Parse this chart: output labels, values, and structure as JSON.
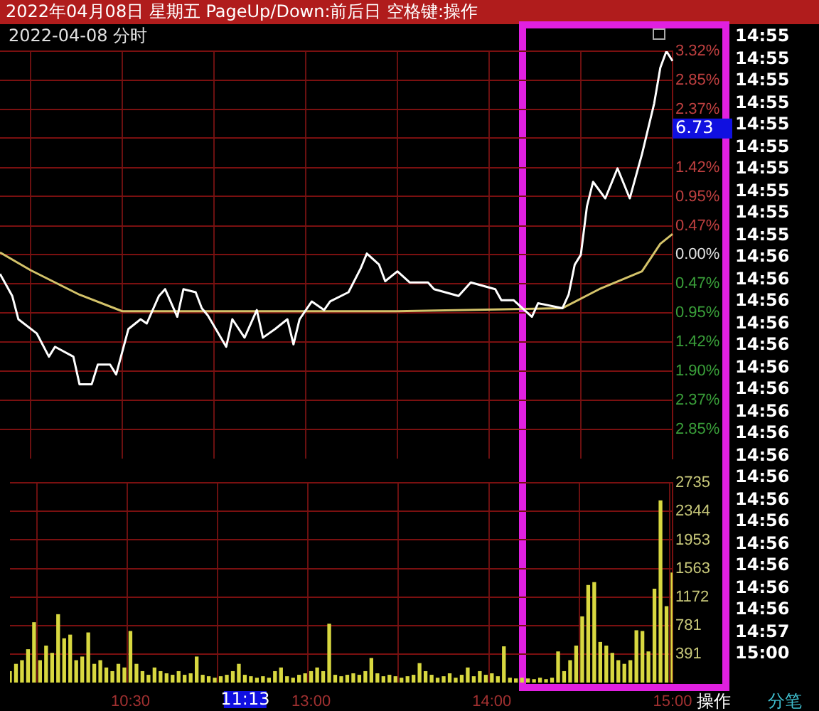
{
  "chart_data": [
    {
      "type": "line",
      "title": "2022-04-08 分时",
      "ylim": [
        -3.32,
        3.32
      ],
      "categories": [
        null,
        null,
        null,
        null,
        null,
        null,
        null,
        null,
        null,
        null,
        null,
        null,
        null,
        null,
        null,
        null,
        null,
        null,
        null,
        null,
        null,
        null,
        null,
        null,
        null,
        null,
        null,
        null,
        null,
        null,
        null,
        null,
        null,
        null,
        null,
        null,
        null,
        null,
        null,
        null,
        null,
        null,
        null,
        null,
        null,
        null,
        null,
        null,
        null,
        null,
        null,
        null,
        null,
        null,
        null,
        null,
        null,
        null,
        null,
        null,
        null,
        null,
        null,
        null,
        null,
        null,
        null,
        null,
        null,
        null,
        null,
        null,
        null,
        null,
        null,
        null,
        null,
        null,
        null,
        null,
        null,
        null,
        null,
        null,
        null,
        null,
        null,
        null,
        null,
        null,
        null,
        null,
        null,
        null,
        null,
        null,
        null,
        null,
        null,
        null,
        null,
        null,
        null,
        null,
        null,
        null,
        null,
        null,
        null,
        null,
        null
      ],
      "yticks": [
        {
          "value": 3.32,
          "label": "3.32%"
        },
        {
          "value": 2.85,
          "label": "2.85%"
        },
        {
          "value": 2.37,
          "label": "2.37%"
        },
        {
          "value": 1.9,
          "label": null
        },
        {
          "value": 1.42,
          "label": "1.42%"
        },
        {
          "value": 0.95,
          "label": "0.95%"
        },
        {
          "value": 0.47,
          "label": "0.47%"
        },
        {
          "value": 0,
          "label": "0.00%"
        },
        {
          "value": -0.47,
          "label": "0.47%"
        },
        {
          "value": -0.95,
          "label": "0.95%"
        },
        {
          "value": -1.42,
          "label": "1.42%"
        },
        {
          "value": -1.9,
          "label": "1.90%"
        },
        {
          "value": -2.37,
          "label": "2.37%"
        },
        {
          "value": -2.85,
          "label": "2.85%"
        }
      ],
      "tick_labels": "y",
      "grid": true,
      "annotations": [
        "6.73"
      ],
      "series": [
        {
          "color": "#ffffff",
          "values": [
            -0.31,
            null,
            -0.67,
            -1.05,
            null,
            null,
            -1.28,
            null,
            -1.66,
            -1.5,
            null,
            null,
            -1.66,
            -2.11,
            null,
            -2.11,
            -1.79,
            null,
            -1.79,
            -1.95,
            null,
            -1.21,
            null,
            -1.05,
            -1.12,
            null,
            -0.67,
            -0.56,
            null,
            -1.01,
            -0.56,
            null,
            -0.61,
            -0.87,
            -0.99,
            null,
            null,
            -1.5,
            -1.05,
            null,
            -1.35,
            null,
            -0.9,
            -1.35,
            null,
            -1.21,
            null,
            -1.05,
            -1.46,
            -1.05,
            null,
            -0.76,
            null,
            -0.9,
            -0.76,
            null,
            null,
            -0.61,
            null,
            -0.22,
            0.02,
            null,
            -0.16,
            -0.43,
            null,
            -0.27,
            null,
            -0.45,
            null,
            null,
            -0.45,
            -0.56,
            null,
            null,
            null,
            -0.67,
            null,
            -0.45,
            null,
            null,
            null,
            -0.56,
            -0.74,
            null,
            -0.74,
            null,
            null,
            -1.01,
            -0.79,
            null,
            null,
            null,
            -0.87,
            -0.65,
            -0.16,
            0,
            0.79,
            1.19,
            null,
            0.92,
            null,
            1.41,
            null,
            0.92,
            null,
            1.64,
            null,
            2.47,
            3.05,
            3.32,
            3.16
          ]
        },
        {
          "color": "#d4c36a",
          "values": [
            0.04,
            null,
            null,
            null,
            null,
            -0.25,
            null,
            null,
            null,
            null,
            null,
            null,
            null,
            -0.65,
            null,
            null,
            null,
            null,
            null,
            null,
            -0.92,
            null,
            null,
            null,
            null,
            null,
            null,
            null,
            null,
            null,
            null,
            null,
            null,
            null,
            null,
            null,
            null,
            null,
            null,
            null,
            null,
            null,
            null,
            null,
            null,
            null,
            null,
            null,
            null,
            null,
            null,
            null,
            null,
            null,
            null,
            null,
            null,
            null,
            null,
            null,
            null,
            null,
            null,
            null,
            null,
            -0.92,
            null,
            null,
            null,
            null,
            null,
            null,
            null,
            null,
            null,
            null,
            null,
            null,
            null,
            null,
            null,
            null,
            null,
            null,
            null,
            null,
            null,
            null,
            null,
            null,
            null,
            null,
            -0.87,
            null,
            null,
            null,
            null,
            null,
            -0.56,
            null,
            null,
            null,
            null,
            null,
            null,
            -0.27,
            null,
            null,
            0.18,
            null,
            0.34
          ]
        }
      ]
    },
    {
      "type": "bar",
      "ylim": [
        0,
        2735
      ],
      "categories": [
        null,
        null,
        null,
        null,
        null,
        null,
        null,
        null,
        null,
        null,
        null,
        null,
        null,
        null,
        null,
        null,
        null,
        null,
        null,
        null,
        "10:30",
        null,
        null,
        null,
        null,
        null,
        null,
        null,
        null,
        null,
        null,
        null,
        null,
        null,
        null,
        null,
        null,
        null,
        null,
        null,
        null,
        null,
        null,
        null,
        null,
        null,
        null,
        null,
        null,
        null,
        "13:00",
        null,
        null,
        null,
        null,
        null,
        null,
        null,
        null,
        null,
        null,
        null,
        null,
        null,
        null,
        null,
        null,
        null,
        null,
        null,
        null,
        null,
        null,
        null,
        null,
        null,
        null,
        null,
        null,
        null,
        "14:00",
        null,
        null,
        null,
        null,
        null,
        null,
        null,
        null,
        null,
        null,
        null,
        null,
        null,
        null,
        null,
        null,
        null,
        null,
        null,
        null,
        null,
        null,
        null,
        null,
        null,
        null,
        null,
        null,
        null,
        "15:00"
      ],
      "yticks": [
        391,
        781,
        1172,
        1563,
        1953,
        2344,
        2735
      ],
      "grid": true,
      "annotations": [
        "11:13"
      ],
      "series": [
        {
          "color": "#d8d840",
          "values": [
            150,
            250,
            300,
            450,
            820,
            300,
            500,
            400,
            930,
            600,
            650,
            300,
            350,
            680,
            250,
            300,
            200,
            150,
            250,
            200,
            700,
            250,
            150,
            100,
            200,
            150,
            120,
            100,
            150,
            100,
            120,
            350,
            100,
            80,
            60,
            80,
            100,
            150,
            250,
            100,
            80,
            60,
            80,
            60,
            150,
            200,
            80,
            60,
            100,
            120,
            150,
            200,
            150,
            800,
            100,
            80,
            100,
            120,
            100,
            150,
            330,
            120,
            80,
            100,
            80,
            60,
            80,
            100,
            260,
            150,
            100,
            60,
            80,
            120,
            60,
            100,
            200,
            80,
            150,
            100,
            120,
            80,
            490,
            60,
            50,
            60,
            50,
            40,
            60,
            40,
            60,
            420,
            150,
            300,
            500,
            900,
            1330,
            1370,
            550,
            500,
            400,
            300,
            250,
            300,
            710,
            700,
            420,
            1280,
            2490,
            1040,
            1500
          ]
        }
      ]
    },
    {
      "type": "other",
      "title": "2022年04月08日 星期五 PageUp/Down:前后日 空格键:操作",
      "annotations": [
        "14:55",
        "14:55",
        "14:55",
        "14:55",
        "14:55",
        "14:55",
        "14:55",
        "14:55",
        "14:55",
        "14:55",
        "14:56",
        "14:56",
        "14:56",
        "14:56",
        "14:56",
        "14:56",
        "14:56",
        "14:56",
        "14:56",
        "14:56",
        "14:56",
        "14:56",
        "14:56",
        "14:56",
        "14:56",
        "14:56",
        "14:56",
        "14:57",
        "15:00",
        "操作",
        "分笔"
      ]
    }
  ]
}
